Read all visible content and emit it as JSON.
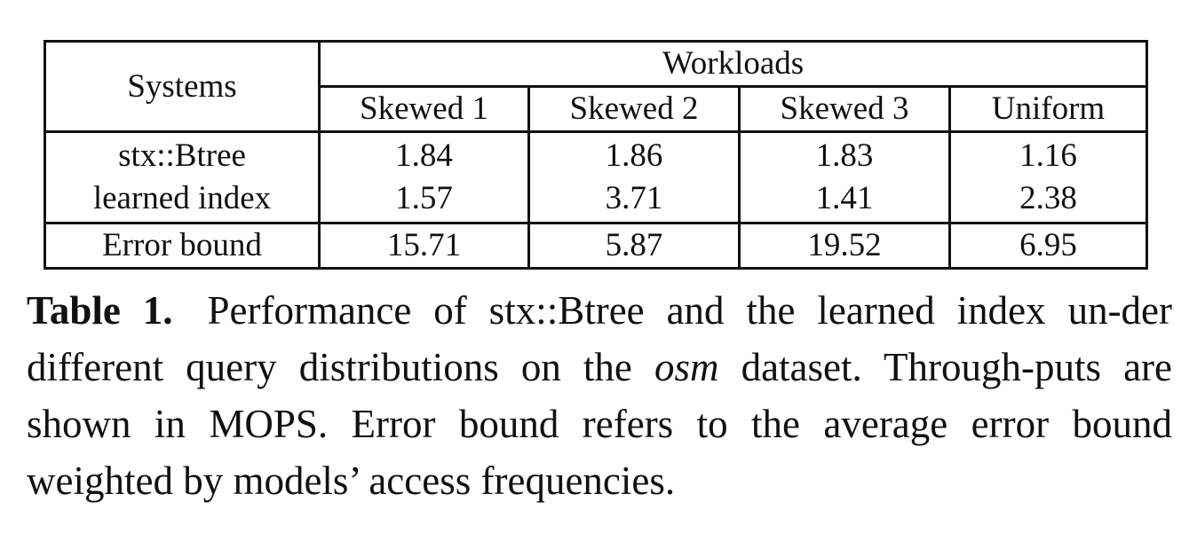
{
  "table": {
    "systems_header": "Systems",
    "workloads_header": "Workloads",
    "columns": [
      "Skewed 1",
      "Skewed 2",
      "Skewed 3",
      "Uniform"
    ],
    "rows": [
      {
        "name": "stx::Btree",
        "values": [
          "1.84",
          "1.86",
          "1.83",
          "1.16"
        ]
      },
      {
        "name": "learned index",
        "values": [
          "1.57",
          "3.71",
          "1.41",
          "2.38"
        ]
      },
      {
        "name": "Error bound",
        "values": [
          "15.71",
          "5.87",
          "19.52",
          "6.95"
        ]
      }
    ]
  },
  "caption": {
    "label": "Table 1.",
    "text_1": "Performance of stx::Btree and the learned index un-der different query distributions on the",
    "dataset": "osm",
    "text_2": "dataset. Through-puts are shown in MOPS. Error bound refers to the average error bound weighted by models’ access frequencies."
  }
}
